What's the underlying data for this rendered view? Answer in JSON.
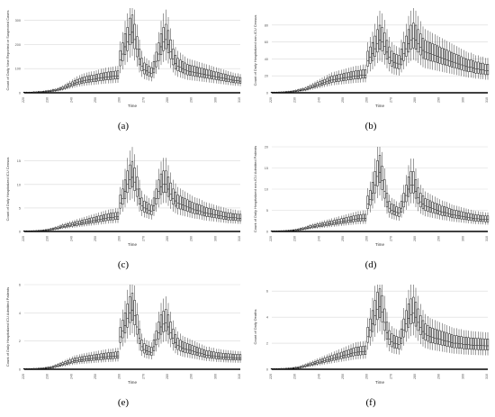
{
  "chart_data": [
    {
      "panel": "a",
      "caption": "(a)",
      "type": "box",
      "ylabel": "Count of Daily New Reported or Suspected Cases",
      "xlabel": "Time",
      "yticks": [
        0,
        100,
        200,
        300
      ],
      "ylim": [
        0,
        350
      ],
      "xticks": [
        220,
        230,
        240,
        250,
        260,
        270,
        280,
        290,
        300,
        310
      ],
      "xlim": [
        220,
        310
      ],
      "grid": true,
      "series_x_start": 220,
      "medians": [
        1,
        1,
        1,
        1,
        2,
        2,
        3,
        3,
        4,
        5,
        6,
        7,
        9,
        10,
        12,
        15,
        18,
        22,
        26,
        30,
        34,
        38,
        42,
        45,
        48,
        50,
        52,
        54,
        55,
        56,
        58,
        60,
        62,
        63,
        65,
        66,
        67,
        68,
        69,
        70,
        135,
        160,
        190,
        210,
        240,
        250,
        220,
        180,
        140,
        110,
        95,
        90,
        85,
        80,
        100,
        130,
        160,
        190,
        210,
        220,
        200,
        170,
        140,
        120,
        110,
        105,
        100,
        95,
        90,
        88,
        86,
        84,
        82,
        80,
        78,
        76,
        74,
        72,
        70,
        68,
        66,
        64,
        62,
        60,
        58,
        56,
        54,
        52,
        50,
        50,
        48
      ]
    },
    {
      "panel": "b",
      "caption": "(b)",
      "type": "box",
      "ylabel": "Count of Daily Hospitalized non-ICU Census",
      "xlabel": "Time",
      "yticks": [
        0,
        20,
        40,
        60,
        80
      ],
      "ylim": [
        0,
        100
      ],
      "xticks": [
        220,
        230,
        240,
        250,
        260,
        270,
        280,
        290,
        300,
        310
      ],
      "xlim": [
        220,
        310
      ],
      "grid": true,
      "series_x_start": 220,
      "medians": [
        0.3,
        0.3,
        0.3,
        0.4,
        0.5,
        0.6,
        0.8,
        1,
        1.2,
        1.5,
        2,
        2.5,
        3,
        3.5,
        4,
        5,
        6,
        7,
        8,
        9,
        10,
        11,
        12,
        13,
        14,
        15,
        15.5,
        16,
        16.5,
        17,
        17.5,
        18,
        18.5,
        19,
        19.5,
        20,
        20,
        20.5,
        21,
        21,
        38,
        42,
        46,
        52,
        58,
        62,
        60,
        55,
        48,
        42,
        38,
        36,
        35,
        34,
        40,
        46,
        52,
        58,
        62,
        64,
        62,
        58,
        54,
        50,
        48,
        47,
        46,
        45,
        44,
        43,
        42,
        41,
        40,
        39,
        38,
        37,
        36,
        35,
        34,
        33,
        32,
        31,
        30,
        30,
        29,
        28,
        28,
        27,
        27,
        26,
        26
      ]
    },
    {
      "panel": "c",
      "caption": "(c)",
      "type": "box",
      "ylabel": "Count of Daily Hospitalized ICU Census",
      "xlabel": "Time",
      "yticks": [
        0,
        5,
        10,
        15
      ],
      "ylim": [
        0,
        18
      ],
      "xticks": [
        220,
        230,
        240,
        250,
        260,
        270,
        280,
        290,
        300,
        310
      ],
      "xlim": [
        220,
        310
      ],
      "grid": true,
      "series_x_start": 220,
      "medians": [
        0.05,
        0.05,
        0.05,
        0.06,
        0.08,
        0.1,
        0.12,
        0.15,
        0.2,
        0.25,
        0.3,
        0.4,
        0.5,
        0.6,
        0.7,
        0.85,
        1,
        1.1,
        1.2,
        1.3,
        1.4,
        1.5,
        1.6,
        1.7,
        1.8,
        1.9,
        2,
        2.1,
        2.2,
        2.3,
        2.4,
        2.5,
        2.6,
        2.7,
        2.8,
        2.9,
        3,
        3,
        3.1,
        3.1,
        6,
        7,
        8.5,
        10,
        11,
        11.5,
        10.5,
        9,
        7,
        5.5,
        5,
        4.8,
        4.5,
        4.3,
        5.5,
        7,
        8.5,
        9.5,
        10,
        10,
        9,
        8,
        7,
        6.5,
        6,
        5.8,
        5.6,
        5.4,
        5.2,
        5,
        4.8,
        4.6,
        4.5,
        4.4,
        4.2,
        4,
        3.9,
        3.8,
        3.7,
        3.6,
        3.5,
        3.4,
        3.3,
        3.2,
        3.1,
        3,
        3,
        2.9,
        2.9,
        2.8,
        2.8
      ]
    },
    {
      "panel": "d",
      "caption": "(d)",
      "type": "box",
      "ylabel": "Count of Daily Hospitalized non-ICU Admitted Patients",
      "xlabel": "Time",
      "yticks": [
        0,
        5,
        10,
        15,
        20
      ],
      "ylim": [
        0,
        20
      ],
      "xticks": [
        220,
        230,
        240,
        250,
        260,
        270,
        280,
        290,
        300,
        310
      ],
      "xlim": [
        220,
        310
      ],
      "grid": true,
      "series_x_start": 220,
      "medians": [
        0.05,
        0.05,
        0.05,
        0.06,
        0.08,
        0.1,
        0.12,
        0.15,
        0.2,
        0.25,
        0.3,
        0.4,
        0.5,
        0.6,
        0.7,
        0.85,
        1,
        1.1,
        1.2,
        1.3,
        1.4,
        1.5,
        1.6,
        1.7,
        1.8,
        1.9,
        2,
        2.1,
        2.2,
        2.3,
        2.4,
        2.5,
        2.6,
        2.7,
        2.8,
        2.9,
        3,
        3,
        3.1,
        3.1,
        6.5,
        7.5,
        9,
        11,
        13,
        14,
        12,
        9.5,
        7,
        5.5,
        5,
        4.8,
        4.5,
        4.3,
        5.5,
        7,
        8.5,
        10,
        11,
        11,
        9.5,
        8,
        7,
        6.5,
        6,
        5.8,
        5.6,
        5.4,
        5.2,
        5,
        4.8,
        4.6,
        4.5,
        4.4,
        4.2,
        4,
        3.9,
        3.8,
        3.7,
        3.6,
        3.5,
        3.4,
        3.3,
        3.2,
        3.1,
        3,
        3,
        2.9,
        2.9,
        2.8,
        2.8
      ]
    },
    {
      "panel": "e",
      "caption": "(e)",
      "type": "box",
      "ylabel": "Count of Daily Hospitalized ICU Admitted Patients",
      "xlabel": "Time",
      "yticks": [
        0,
        2,
        4,
        6
      ],
      "ylim": [
        0,
        6
      ],
      "xticks": [
        220,
        230,
        240,
        250,
        260,
        270,
        280,
        290,
        300,
        310
      ],
      "xlim": [
        220,
        310
      ],
      "grid": true,
      "series_x_start": 220,
      "medians": [
        0.02,
        0.02,
        0.02,
        0.02,
        0.03,
        0.03,
        0.04,
        0.05,
        0.06,
        0.08,
        0.1,
        0.12,
        0.15,
        0.2,
        0.25,
        0.3,
        0.35,
        0.4,
        0.45,
        0.5,
        0.55,
        0.6,
        0.62,
        0.65,
        0.68,
        0.7,
        0.72,
        0.74,
        0.76,
        0.78,
        0.8,
        0.82,
        0.84,
        0.86,
        0.88,
        0.9,
        0.9,
        0.92,
        0.94,
        0.95,
        2.3,
        2.7,
        3.1,
        3.6,
        4.0,
        4.2,
        3.8,
        3.0,
        2.2,
        1.6,
        1.4,
        1.3,
        1.25,
        1.2,
        1.6,
        2.1,
        2.6,
        3.0,
        3.2,
        3.3,
        3.0,
        2.6,
        2.2,
        1.9,
        1.7,
        1.6,
        1.5,
        1.45,
        1.4,
        1.35,
        1.3,
        1.25,
        1.2,
        1.15,
        1.1,
        1.05,
        1.0,
        1.0,
        0.95,
        0.95,
        0.9,
        0.9,
        0.88,
        0.86,
        0.85,
        0.84,
        0.83,
        0.82,
        0.81,
        0.8,
        0.8
      ]
    },
    {
      "panel": "f",
      "caption": "(f)",
      "type": "box",
      "ylabel": "Count of Daily Deaths",
      "xlabel": "Time",
      "yticks": [
        0,
        2,
        4,
        6
      ],
      "ylim": [
        0,
        6.5
      ],
      "xticks": [
        220,
        230,
        240,
        250,
        260,
        270,
        280,
        290,
        300,
        310
      ],
      "xlim": [
        220,
        310
      ],
      "grid": true,
      "series_x_start": 220,
      "medians": [
        0.02,
        0.02,
        0.02,
        0.02,
        0.03,
        0.03,
        0.04,
        0.05,
        0.06,
        0.08,
        0.1,
        0.12,
        0.15,
        0.2,
        0.25,
        0.3,
        0.35,
        0.4,
        0.45,
        0.5,
        0.55,
        0.6,
        0.65,
        0.7,
        0.75,
        0.8,
        0.85,
        0.9,
        0.95,
        1.0,
        1.05,
        1.1,
        1.15,
        1.2,
        1.25,
        1.3,
        1.32,
        1.34,
        1.36,
        1.38,
        2.5,
        3.0,
        3.5,
        4.1,
        4.6,
        4.8,
        4.4,
        3.6,
        2.8,
        2.3,
        2.1,
        2.0,
        1.95,
        1.9,
        2.4,
        3.0,
        3.5,
        3.9,
        4.2,
        4.3,
        4.0,
        3.6,
        3.2,
        2.9,
        2.7,
        2.6,
        2.5,
        2.45,
        2.4,
        2.35,
        2.3,
        2.25,
        2.2,
        2.15,
        2.1,
        2.05,
        2.0,
        2.0,
        1.95,
        1.95,
        1.9,
        1.9,
        1.88,
        1.86,
        1.85,
        1.84,
        1.83,
        1.82,
        1.81,
        1.8,
        1.8
      ]
    }
  ]
}
